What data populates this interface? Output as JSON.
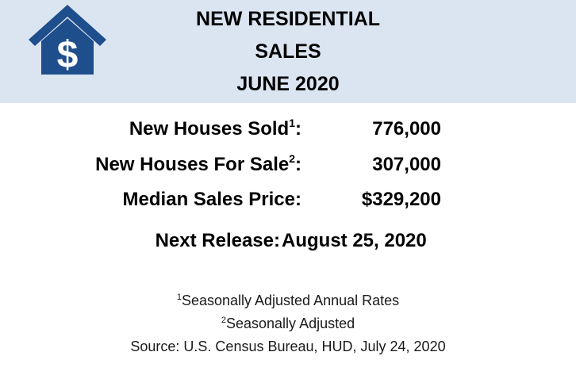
{
  "header": {
    "logo_icon": "house-dollar-icon",
    "title_lines": [
      "NEW RESIDENTIAL",
      "SALES",
      "JUNE 2020"
    ],
    "background_color": "#dbe4f1",
    "logo_color": "#1f4e8c"
  },
  "stats": [
    {
      "label": "New Houses Sold",
      "footnote_mark": "1",
      "suffix": ":",
      "value": "776,000"
    },
    {
      "label": "New Houses For Sale",
      "footnote_mark": "2",
      "suffix": ":",
      "value": "307,000"
    },
    {
      "label": "Median Sales Price",
      "footnote_mark": "",
      "suffix": ":",
      "value": "$329,200"
    }
  ],
  "release": {
    "label": "Next Release:",
    "value": "August 25, 2020"
  },
  "footnotes": {
    "note1_mark": "1",
    "note1_text": "Seasonally Adjusted Annual Rates",
    "note2_mark": "2",
    "note2_text": "Seasonally Adjusted",
    "source": "Source:  U.S. Census Bureau, HUD, July 24, 2020"
  }
}
